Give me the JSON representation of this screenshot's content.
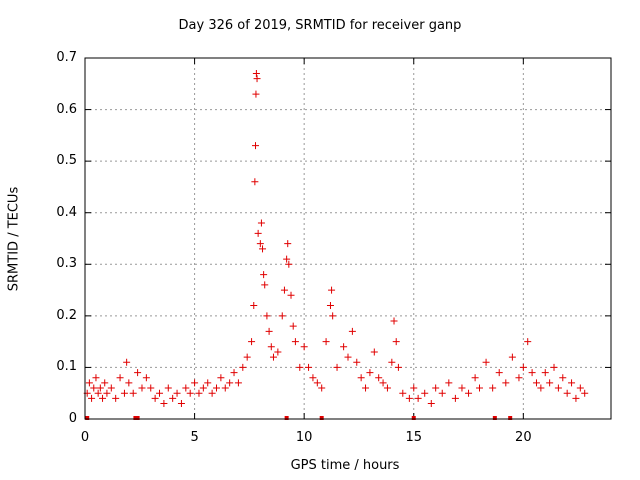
{
  "chart_data": {
    "type": "scatter",
    "title": "Day 326 of 2019, SRMTID for receiver ganp",
    "xlabel": "GPS time / hours",
    "ylabel": "SRMTID / TECUs",
    "xlim": [
      0,
      24
    ],
    "ylim": [
      0,
      0.7
    ],
    "x_ticks": [
      0,
      5,
      10,
      15,
      20
    ],
    "y_ticks": [
      0,
      0.1,
      0.2,
      0.3,
      0.4,
      0.5,
      0.6,
      0.7
    ],
    "x_tick_labels": [
      "0",
      "5",
      "10",
      "15",
      "20"
    ],
    "y_tick_labels": [
      "0",
      "0.1",
      "0.2",
      "0.3",
      "0.4",
      "0.5",
      "0.6",
      "0.7"
    ],
    "grid": true,
    "marker": "+",
    "color": "#e00000",
    "series": [
      {
        "name": "SRMTID",
        "points": [
          [
            0.1,
            0.05
          ],
          [
            0.2,
            0.07
          ],
          [
            0.3,
            0.04
          ],
          [
            0.4,
            0.06
          ],
          [
            0.5,
            0.08
          ],
          [
            0.6,
            0.05
          ],
          [
            0.7,
            0.06
          ],
          [
            0.8,
            0.04
          ],
          [
            0.9,
            0.07
          ],
          [
            1.0,
            0.05
          ],
          [
            1.2,
            0.06
          ],
          [
            1.4,
            0.04
          ],
          [
            1.6,
            0.08
          ],
          [
            1.8,
            0.05
          ],
          [
            1.9,
            0.11
          ],
          [
            2.0,
            0.07
          ],
          [
            2.2,
            0.05
          ],
          [
            2.4,
            0.09
          ],
          [
            2.6,
            0.06
          ],
          [
            2.8,
            0.08
          ],
          [
            3.0,
            0.06
          ],
          [
            3.2,
            0.04
          ],
          [
            3.4,
            0.05
          ],
          [
            3.6,
            0.03
          ],
          [
            3.8,
            0.06
          ],
          [
            4.0,
            0.04
          ],
          [
            4.2,
            0.05
          ],
          [
            4.4,
            0.03
          ],
          [
            4.6,
            0.06
          ],
          [
            4.8,
            0.05
          ],
          [
            5.0,
            0.07
          ],
          [
            5.2,
            0.05
          ],
          [
            5.4,
            0.06
          ],
          [
            5.6,
            0.07
          ],
          [
            5.8,
            0.05
          ],
          [
            6.0,
            0.06
          ],
          [
            6.2,
            0.08
          ],
          [
            6.4,
            0.06
          ],
          [
            6.6,
            0.07
          ],
          [
            6.8,
            0.09
          ],
          [
            7.0,
            0.07
          ],
          [
            7.2,
            0.1
          ],
          [
            7.4,
            0.12
          ],
          [
            7.6,
            0.15
          ],
          [
            7.7,
            0.22
          ],
          [
            7.75,
            0.46
          ],
          [
            7.78,
            0.53
          ],
          [
            7.8,
            0.63
          ],
          [
            7.82,
            0.67
          ],
          [
            7.85,
            0.66
          ],
          [
            7.9,
            0.36
          ],
          [
            8.0,
            0.34
          ],
          [
            8.05,
            0.38
          ],
          [
            8.1,
            0.33
          ],
          [
            8.15,
            0.28
          ],
          [
            8.2,
            0.26
          ],
          [
            8.3,
            0.2
          ],
          [
            8.4,
            0.17
          ],
          [
            8.5,
            0.14
          ],
          [
            8.6,
            0.12
          ],
          [
            8.8,
            0.13
          ],
          [
            9.0,
            0.2
          ],
          [
            9.1,
            0.25
          ],
          [
            9.2,
            0.31
          ],
          [
            9.25,
            0.34
          ],
          [
            9.3,
            0.3
          ],
          [
            9.4,
            0.24
          ],
          [
            9.5,
            0.18
          ],
          [
            9.6,
            0.15
          ],
          [
            9.8,
            0.1
          ],
          [
            10.0,
            0.14
          ],
          [
            10.2,
            0.1
          ],
          [
            10.4,
            0.08
          ],
          [
            10.6,
            0.07
          ],
          [
            10.8,
            0.06
          ],
          [
            11.0,
            0.15
          ],
          [
            11.2,
            0.22
          ],
          [
            11.25,
            0.25
          ],
          [
            11.3,
            0.2
          ],
          [
            11.5,
            0.1
          ],
          [
            11.8,
            0.14
          ],
          [
            12.0,
            0.12
          ],
          [
            12.2,
            0.17
          ],
          [
            12.4,
            0.11
          ],
          [
            12.6,
            0.08
          ],
          [
            12.8,
            0.06
          ],
          [
            13.0,
            0.09
          ],
          [
            13.2,
            0.13
          ],
          [
            13.4,
            0.08
          ],
          [
            13.6,
            0.07
          ],
          [
            13.8,
            0.06
          ],
          [
            14.0,
            0.11
          ],
          [
            14.1,
            0.19
          ],
          [
            14.2,
            0.15
          ],
          [
            14.3,
            0.1
          ],
          [
            14.5,
            0.05
          ],
          [
            14.8,
            0.04
          ],
          [
            15.0,
            0.06
          ],
          [
            15.2,
            0.04
          ],
          [
            15.5,
            0.05
          ],
          [
            15.8,
            0.03
          ],
          [
            16.0,
            0.06
          ],
          [
            16.3,
            0.05
          ],
          [
            16.6,
            0.07
          ],
          [
            16.9,
            0.04
          ],
          [
            17.2,
            0.06
          ],
          [
            17.5,
            0.05
          ],
          [
            17.8,
            0.08
          ],
          [
            18.0,
            0.06
          ],
          [
            18.3,
            0.11
          ],
          [
            18.6,
            0.06
          ],
          [
            18.9,
            0.09
          ],
          [
            19.2,
            0.07
          ],
          [
            19.5,
            0.12
          ],
          [
            19.8,
            0.08
          ],
          [
            20.0,
            0.1
          ],
          [
            20.2,
            0.15
          ],
          [
            20.4,
            0.09
          ],
          [
            20.6,
            0.07
          ],
          [
            20.8,
            0.06
          ],
          [
            21.0,
            0.09
          ],
          [
            21.2,
            0.07
          ],
          [
            21.4,
            0.1
          ],
          [
            21.6,
            0.06
          ],
          [
            21.8,
            0.08
          ],
          [
            22.0,
            0.05
          ],
          [
            22.2,
            0.07
          ],
          [
            22.4,
            0.04
          ],
          [
            22.6,
            0.06
          ],
          [
            22.8,
            0.05
          ]
        ]
      }
    ],
    "zero_markers_x": [
      0.1,
      2.3,
      2.4,
      9.2,
      10.8,
      15.0,
      18.7,
      19.4
    ]
  }
}
